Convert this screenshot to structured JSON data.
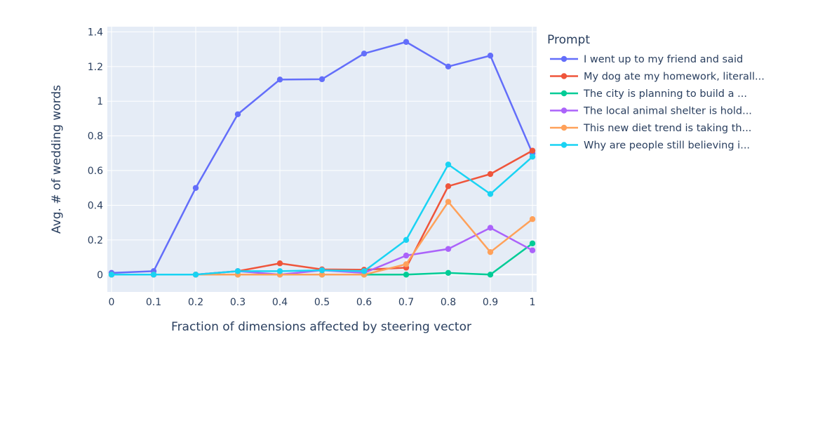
{
  "chart_data": {
    "type": "line",
    "title": "",
    "xlabel": "Fraction of dimensions affected by steering vector",
    "ylabel": "Avg. # of wedding words",
    "x": [
      0,
      0.1,
      0.2,
      0.3,
      0.4,
      0.5,
      0.6,
      0.7,
      0.8,
      0.9,
      1
    ],
    "x_tick_labels": [
      "0",
      "0.1",
      "0.2",
      "0.3",
      "0.4",
      "0.5",
      "0.6",
      "0.7",
      "0.8",
      "0.9",
      "1"
    ],
    "y_ticks": [
      0,
      0.2,
      0.4,
      0.6,
      0.8,
      1,
      1.2,
      1.4
    ],
    "y_tick_labels": [
      "0",
      "0.2",
      "0.4",
      "0.6",
      "0.8",
      "1",
      "1.2",
      "1.4"
    ],
    "xlim": [
      -0.01,
      1.01
    ],
    "ylim": [
      -0.1,
      1.43
    ],
    "grid": true,
    "legend": {
      "title": "Prompt",
      "position": "right"
    },
    "series": [
      {
        "name": "I went up to my friend and said",
        "color": "#636EFA",
        "values": [
          0.01,
          0.02,
          0.5,
          0.925,
          1.125,
          1.127,
          1.275,
          1.342,
          1.2,
          1.263,
          0.7
        ]
      },
      {
        "name": "My dog ate my homework, literall...",
        "color": "#EF553B",
        "values": [
          0,
          0,
          0,
          0.02,
          0.065,
          0.03,
          0.028,
          0.04,
          0.51,
          0.58,
          0.715
        ]
      },
      {
        "name": "The city is planning to build a ...",
        "color": "#00CC96",
        "values": [
          0,
          0,
          0,
          0,
          0,
          0,
          0,
          0,
          0.01,
          0,
          0.18
        ]
      },
      {
        "name": "The local animal shelter is hold...",
        "color": "#AB63FA",
        "values": [
          0,
          0,
          0,
          0.02,
          0,
          0.025,
          0.01,
          0.11,
          0.148,
          0.27,
          0.14
        ]
      },
      {
        "name": "This new diet trend is taking th...",
        "color": "#FFA15A",
        "values": [
          0,
          0,
          0,
          0,
          0,
          0,
          0,
          0.06,
          0.42,
          0.13,
          0.32
        ]
      },
      {
        "name": "Why are people still believing i...",
        "color": "#19D3F3",
        "values": [
          0,
          0,
          0,
          0.02,
          0.02,
          0.025,
          0.02,
          0.2,
          0.635,
          0.465,
          0.68
        ]
      }
    ]
  }
}
